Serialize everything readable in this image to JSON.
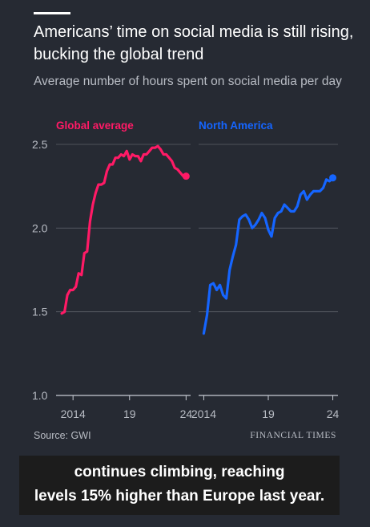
{
  "header": {
    "title": "Americans’ time on social media is still rising, bucking the global trend",
    "subtitle": "Average number of hours spent on social media per day"
  },
  "footer": {
    "source": "Source: GWI",
    "brand": "FINANCIAL TIMES"
  },
  "caption": {
    "line1": "continues climbing, reaching",
    "line2": "levels 15% higher than Europe last year."
  },
  "colors": {
    "background": "#262a33",
    "global": "#ff1a66",
    "north_america": "#1565ff",
    "grid": "#5b5f68",
    "axis_text": "#b8bcc4"
  },
  "chart_data": [
    {
      "type": "line",
      "title": "Global average",
      "xlabel": "",
      "ylabel": "",
      "ylim": [
        1.0,
        2.5
      ],
      "xlim": [
        2012.5,
        2024.4
      ],
      "y_ticks": [
        1.0,
        1.5,
        2.0,
        2.5
      ],
      "y_tick_labels": [
        "1.0",
        "1.5",
        "2.0",
        "2.5"
      ],
      "x_ticks": [
        2014,
        2019,
        2024
      ],
      "x_tick_labels": [
        "2014",
        "19",
        "24"
      ],
      "grid": true,
      "series": [
        {
          "name": "Global average",
          "x": [
            2013.0,
            2013.25,
            2013.5,
            2013.75,
            2014.0,
            2014.25,
            2014.5,
            2014.75,
            2015.0,
            2015.25,
            2015.5,
            2015.75,
            2016.0,
            2016.25,
            2016.5,
            2016.75,
            2017.0,
            2017.25,
            2017.5,
            2017.75,
            2018.0,
            2018.25,
            2018.5,
            2018.75,
            2019.0,
            2019.25,
            2019.5,
            2019.75,
            2020.0,
            2020.25,
            2020.5,
            2020.75,
            2021.0,
            2021.25,
            2021.5,
            2021.75,
            2022.0,
            2022.25,
            2022.5,
            2022.75,
            2023.0,
            2023.25,
            2023.5,
            2023.75,
            2024.0
          ],
          "y": [
            1.49,
            1.5,
            1.6,
            1.63,
            1.63,
            1.65,
            1.73,
            1.72,
            1.85,
            1.86,
            2.04,
            2.14,
            2.21,
            2.26,
            2.26,
            2.27,
            2.34,
            2.38,
            2.38,
            2.42,
            2.42,
            2.44,
            2.43,
            2.46,
            2.41,
            2.44,
            2.43,
            2.43,
            2.4,
            2.44,
            2.44,
            2.46,
            2.48,
            2.48,
            2.49,
            2.47,
            2.44,
            2.44,
            2.42,
            2.4,
            2.36,
            2.35,
            2.33,
            2.31,
            2.31
          ]
        }
      ]
    },
    {
      "type": "line",
      "title": "North America",
      "xlabel": "",
      "ylabel": "",
      "ylim": [
        1.0,
        2.5
      ],
      "xlim": [
        2013.6,
        2024.4
      ],
      "x_ticks": [
        2014,
        2019,
        2024
      ],
      "x_tick_labels": [
        "2014",
        "19",
        "24"
      ],
      "grid": true,
      "series": [
        {
          "name": "North America",
          "x": [
            2014.0,
            2014.25,
            2014.5,
            2014.75,
            2015.0,
            2015.25,
            2015.5,
            2015.75,
            2016.0,
            2016.25,
            2016.5,
            2016.75,
            2017.0,
            2017.25,
            2017.5,
            2017.75,
            2018.0,
            2018.25,
            2018.5,
            2018.75,
            2019.0,
            2019.25,
            2019.5,
            2019.75,
            2020.0,
            2020.25,
            2020.5,
            2020.75,
            2021.0,
            2021.25,
            2021.5,
            2021.75,
            2022.0,
            2022.25,
            2022.5,
            2022.75,
            2023.0,
            2023.25,
            2023.5,
            2023.75,
            2024.0
          ],
          "y": [
            1.37,
            1.48,
            1.66,
            1.67,
            1.63,
            1.66,
            1.6,
            1.58,
            1.75,
            1.83,
            1.9,
            2.05,
            2.07,
            2.08,
            2.05,
            2.0,
            2.02,
            2.05,
            2.09,
            2.06,
            1.99,
            1.95,
            2.06,
            2.09,
            2.1,
            2.14,
            2.12,
            2.1,
            2.1,
            2.13,
            2.2,
            2.22,
            2.17,
            2.2,
            2.22,
            2.22,
            2.22,
            2.24,
            2.29,
            2.28,
            2.3
          ]
        }
      ]
    }
  ]
}
